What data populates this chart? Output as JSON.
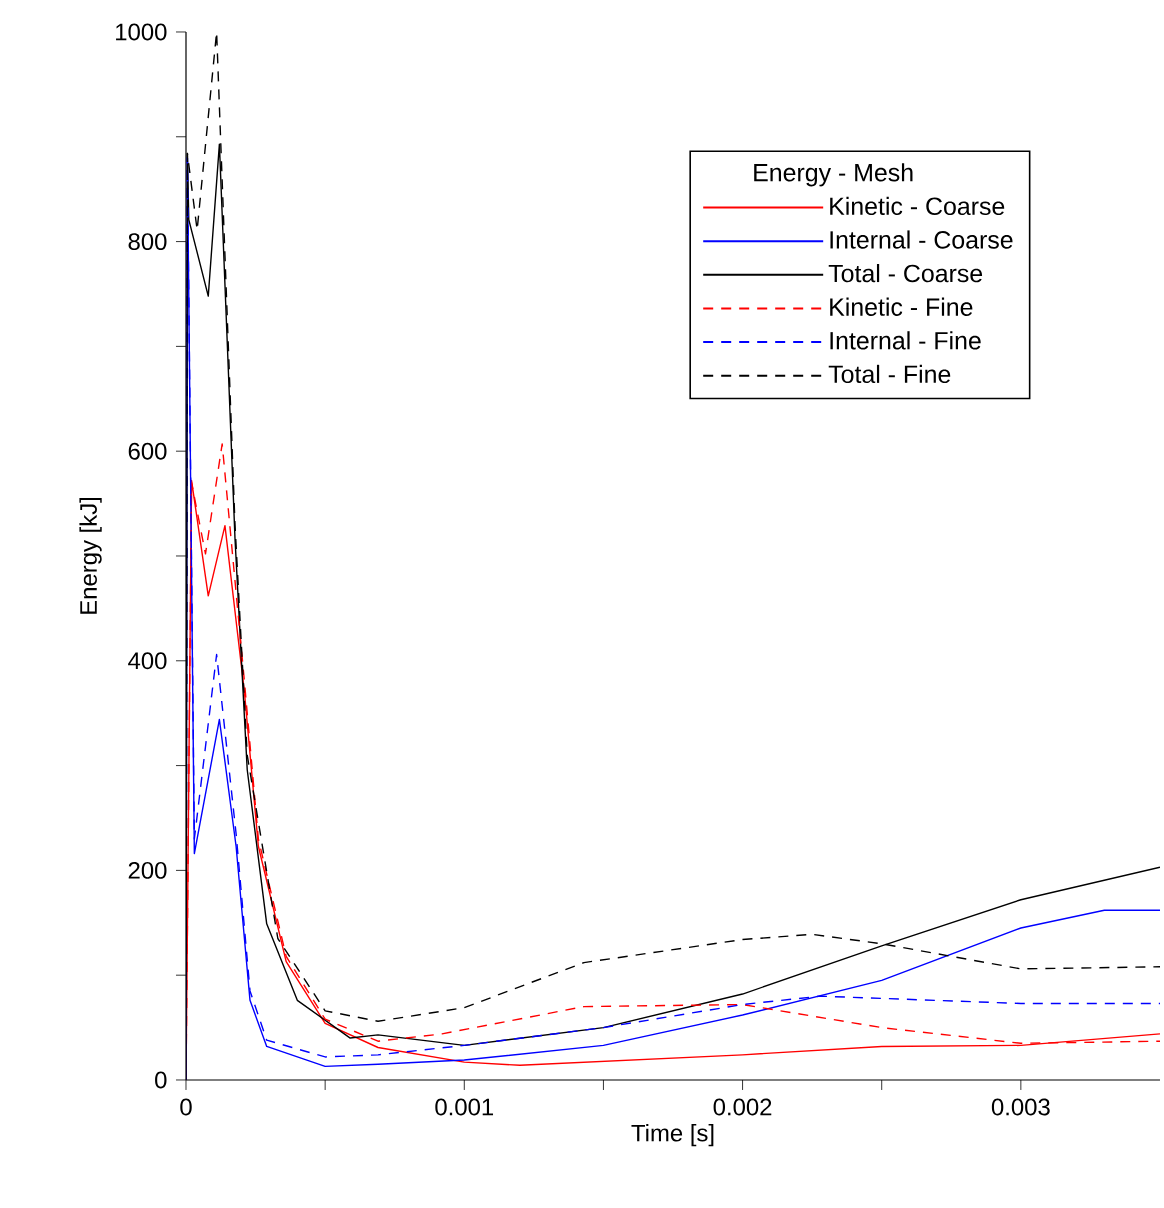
{
  "chart_data": {
    "type": "line",
    "xlabel": "Time [s]",
    "ylabel": "Energy [kJ]",
    "legend_title": "Energy - Mesh",
    "legend": "top right",
    "xlim": [
      0,
      0.0035
    ],
    "ylim": [
      0,
      1000
    ],
    "xticks": [
      0,
      {
        "value": 0.0005,
        "label": null
      },
      0.001,
      {
        "value": 0.0015,
        "label": null
      },
      0.002,
      {
        "value": 0.0025,
        "label": null
      },
      0.003
    ],
    "yticks": [
      0,
      {
        "value": 100,
        "label": null
      },
      200,
      {
        "value": 300,
        "label": null
      },
      400,
      {
        "value": 500,
        "label": null
      },
      600,
      {
        "value": 700,
        "label": null
      },
      800,
      {
        "value": 900,
        "label": null
      },
      1000
    ],
    "series": [
      {
        "name": "Kinetic - Coarse",
        "color": "#ff0000",
        "line_style": "solid",
        "x": [
          0,
          2e-05,
          8e-05,
          0.00014,
          0.00021,
          0.00026,
          0.00036,
          0.0005,
          0.00069,
          0.001,
          0.0012,
          0.002,
          0.0025,
          0.003,
          0.0035
        ],
        "values": [
          0,
          572,
          462,
          529,
          370,
          223,
          113,
          54,
          31,
          17,
          14,
          24,
          32,
          33,
          44
        ]
      },
      {
        "name": "Internal - Coarse",
        "color": "#0000ff",
        "line_style": "solid",
        "x": [
          0,
          5e-06,
          3e-05,
          0.00012,
          0.00018,
          0.00023,
          0.00029,
          0.0005,
          0.00069,
          0.001,
          0.0015,
          0.002,
          0.0025,
          0.003,
          0.0033,
          0.0035
        ],
        "values": [
          0,
          880,
          216,
          344,
          223,
          76,
          32,
          13,
          15,
          19,
          33,
          62,
          95,
          145,
          162,
          162
        ]
      },
      {
        "name": "Total - Coarse",
        "color": "#000000",
        "line_style": "solid",
        "x": [
          0,
          5e-06,
          1e-05,
          8e-05,
          0.00012,
          0.000176,
          0.00022,
          0.00029,
          0.0004,
          0.00059,
          0.00069,
          0.001,
          0.0015,
          0.002,
          0.0025,
          0.003,
          0.0035
        ],
        "values": [
          0,
          884,
          821,
          748,
          893,
          517,
          296,
          149,
          76,
          40,
          43,
          33,
          50,
          82,
          128,
          172,
          203
        ]
      },
      {
        "name": "Kinetic - Fine",
        "color": "#ff0000",
        "line_style": "dashed",
        "x": [
          0,
          2e-05,
          7e-05,
          0.00013,
          0.00021,
          0.00026,
          0.00036,
          0.0005,
          0.00069,
          0.00092,
          0.00143,
          0.002,
          0.0025,
          0.003,
          0.0035
        ],
        "values": [
          0,
          570,
          502,
          607,
          380,
          230,
          118,
          58,
          37,
          44,
          70,
          72,
          50,
          35,
          37
        ]
      },
      {
        "name": "Internal - Fine",
        "color": "#0000ff",
        "line_style": "dashed",
        "x": [
          0,
          5e-06,
          3e-05,
          0.00011,
          0.00018,
          0.00023,
          0.00029,
          0.0005,
          0.00069,
          0.001,
          0.0015,
          0.002,
          0.00228,
          0.003,
          0.0035
        ],
        "values": [
          0,
          880,
          230,
          406,
          235,
          85,
          38,
          22,
          24,
          33,
          50,
          72,
          80,
          73,
          73
        ]
      },
      {
        "name": "Total - Fine",
        "color": "#000000",
        "line_style": "dashed",
        "x": [
          0,
          5e-06,
          4e-05,
          0.00011,
          0.000176,
          0.00022,
          0.00033,
          0.0005,
          0.00069,
          0.001,
          0.00143,
          0.002,
          0.00225,
          0.0025,
          0.003,
          0.0035
        ],
        "values": [
          0,
          884,
          811,
          1000,
          530,
          310,
          135,
          66,
          56,
          69,
          112,
          134,
          139,
          130,
          106,
          108
        ]
      }
    ]
  }
}
